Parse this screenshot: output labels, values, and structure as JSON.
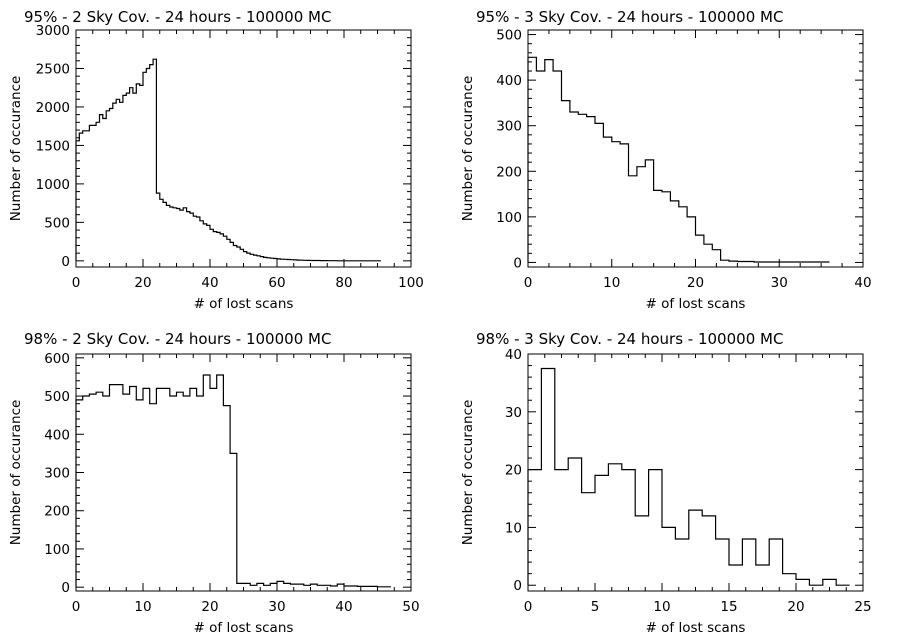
{
  "chart_data": [
    {
      "type": "bar",
      "title": "95% - 2 Sky Cov. - 24 hours - 100000 MC",
      "xlabel": "# of lost scans",
      "ylabel": "Number of occurance",
      "xlim": [
        0,
        100
      ],
      "ylim": [
        -80,
        3000
      ],
      "xticks": [
        "0",
        "20",
        "40",
        "60",
        "80",
        "100"
      ],
      "yticks": [
        "0",
        "500",
        "1000",
        "1500",
        "2000",
        "2500",
        "3000"
      ],
      "x_start": 0,
      "bin_width": 1,
      "values": [
        1560,
        1660,
        1690,
        1690,
        1760,
        1760,
        1800,
        1900,
        1850,
        1950,
        1980,
        2050,
        2100,
        2060,
        2150,
        2180,
        2250,
        2180,
        2300,
        2280,
        2450,
        2500,
        2550,
        2620,
        880,
        800,
        760,
        720,
        700,
        690,
        680,
        660,
        690,
        640,
        620,
        580,
        570,
        520,
        480,
        460,
        410,
        380,
        370,
        350,
        320,
        280,
        240,
        200,
        180,
        150,
        120,
        100,
        85,
        75,
        65,
        55,
        45,
        40,
        35,
        30,
        25,
        22,
        20,
        18,
        15,
        12,
        10,
        8,
        7,
        6,
        5,
        4,
        4,
        3,
        3,
        2,
        2,
        2,
        1,
        1,
        1,
        1,
        1,
        1,
        1,
        0,
        0,
        0,
        0,
        0,
        0
      ]
    },
    {
      "type": "bar",
      "title": "95% - 3 Sky Cov. - 24 hours - 100000 MC",
      "xlabel": "# of lost scans",
      "ylabel": "Number of occurance",
      "xlim": [
        0,
        40
      ],
      "ylim": [
        -10,
        510
      ],
      "xticks": [
        "0",
        "10",
        "20",
        "30",
        "40"
      ],
      "yticks": [
        "0",
        "100",
        "200",
        "300",
        "400",
        "500"
      ],
      "x_start": 0,
      "bin_width": 1,
      "values": [
        450,
        420,
        445,
        420,
        355,
        330,
        325,
        320,
        305,
        275,
        265,
        260,
        190,
        210,
        225,
        158,
        155,
        135,
        122,
        100,
        60,
        40,
        28,
        5,
        3,
        2,
        2,
        1,
        1,
        1,
        1,
        1,
        1,
        1,
        1,
        1
      ]
    },
    {
      "type": "bar",
      "title": "98% - 2 Sky Cov. - 24 hours - 100000 MC",
      "xlabel": "# of lost scans",
      "ylabel": "Number of occurance",
      "xlim": [
        0,
        50
      ],
      "ylim": [
        -10,
        610
      ],
      "xticks": [
        "0",
        "10",
        "20",
        "30",
        "40",
        "50"
      ],
      "yticks": [
        "0",
        "100",
        "200",
        "300",
        "400",
        "500",
        "600"
      ],
      "x_start": 0,
      "bin_width": 1,
      "values": [
        490,
        500,
        505,
        510,
        500,
        530,
        530,
        505,
        525,
        490,
        520,
        480,
        520,
        520,
        500,
        510,
        500,
        520,
        500,
        555,
        520,
        555,
        475,
        350,
        10,
        10,
        5,
        10,
        5,
        10,
        15,
        10,
        8,
        8,
        5,
        8,
        5,
        5,
        3,
        8,
        3,
        3,
        2,
        2,
        2,
        1,
        1
      ]
    },
    {
      "type": "bar",
      "title": "98% - 3 Sky Cov. - 24 hours - 100000 MC",
      "xlabel": "# of lost scans",
      "ylabel": "Number of occurance",
      "xlim": [
        0,
        25
      ],
      "ylim": [
        -1,
        40
      ],
      "xticks": [
        "0",
        "5",
        "10",
        "15",
        "20",
        "25"
      ],
      "yticks": [
        "0",
        "10",
        "20",
        "30",
        "40"
      ],
      "x_start": 0,
      "bin_width": 1,
      "values": [
        20,
        37.5,
        20,
        22,
        16,
        19,
        21,
        20,
        12,
        20,
        10,
        8,
        13,
        12,
        8,
        3.5,
        8,
        3.5,
        8,
        2,
        1,
        0,
        1,
        0
      ]
    }
  ]
}
